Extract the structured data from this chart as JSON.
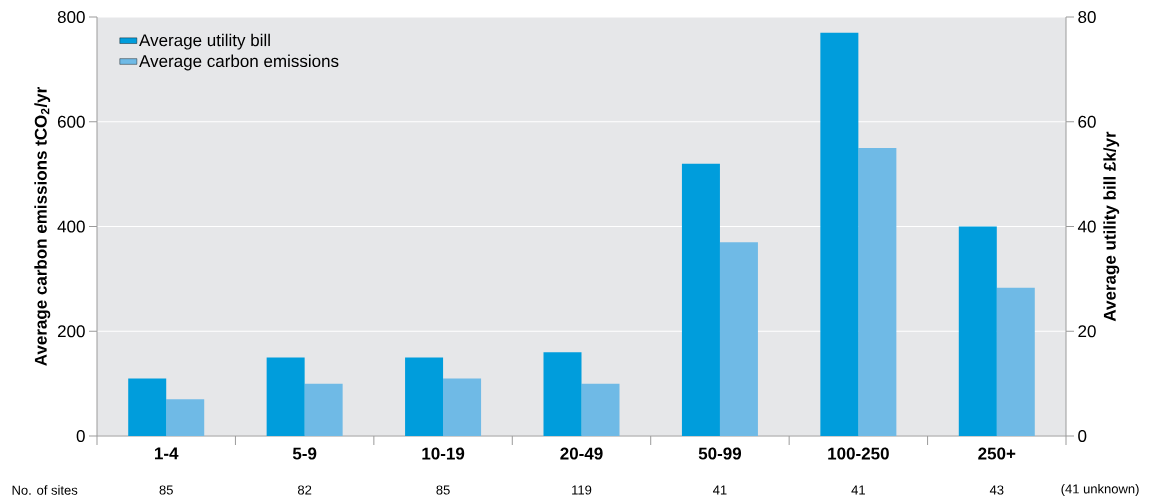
{
  "chart_data": {
    "type": "bar",
    "categories": [
      "1-4",
      "5-9",
      "10-19",
      "20-49",
      "50-99",
      "100-250",
      "250+"
    ],
    "ylabel": "Average carbon emissions tCO$_{2}$/yr",
    "y2label": "Average utility bill £k/yr",
    "ylim": [
      0,
      800
    ],
    "yticks": [
      0,
      200,
      400,
      600,
      800
    ],
    "y2lim": [
      0,
      80
    ],
    "y2ticks": [
      0,
      20,
      40,
      60,
      80
    ],
    "grid": "y",
    "legend": "top left",
    "series": [
      {
        "name": "Average utility bill",
        "color": "#009ddc",
        "axis": "y2",
        "values": [
          11,
          15,
          15,
          16,
          52,
          77,
          40
        ]
      },
      {
        "name": "Average carbon emissions",
        "color": "#6fbae6",
        "values": [
          70,
          100,
          110,
          100,
          370,
          550,
          283
        ]
      }
    ],
    "annotations": [
      "No. of sites",
      "85",
      "82",
      "85",
      "119",
      "41",
      "41",
      "43",
      "(41 unknown)"
    ]
  }
}
